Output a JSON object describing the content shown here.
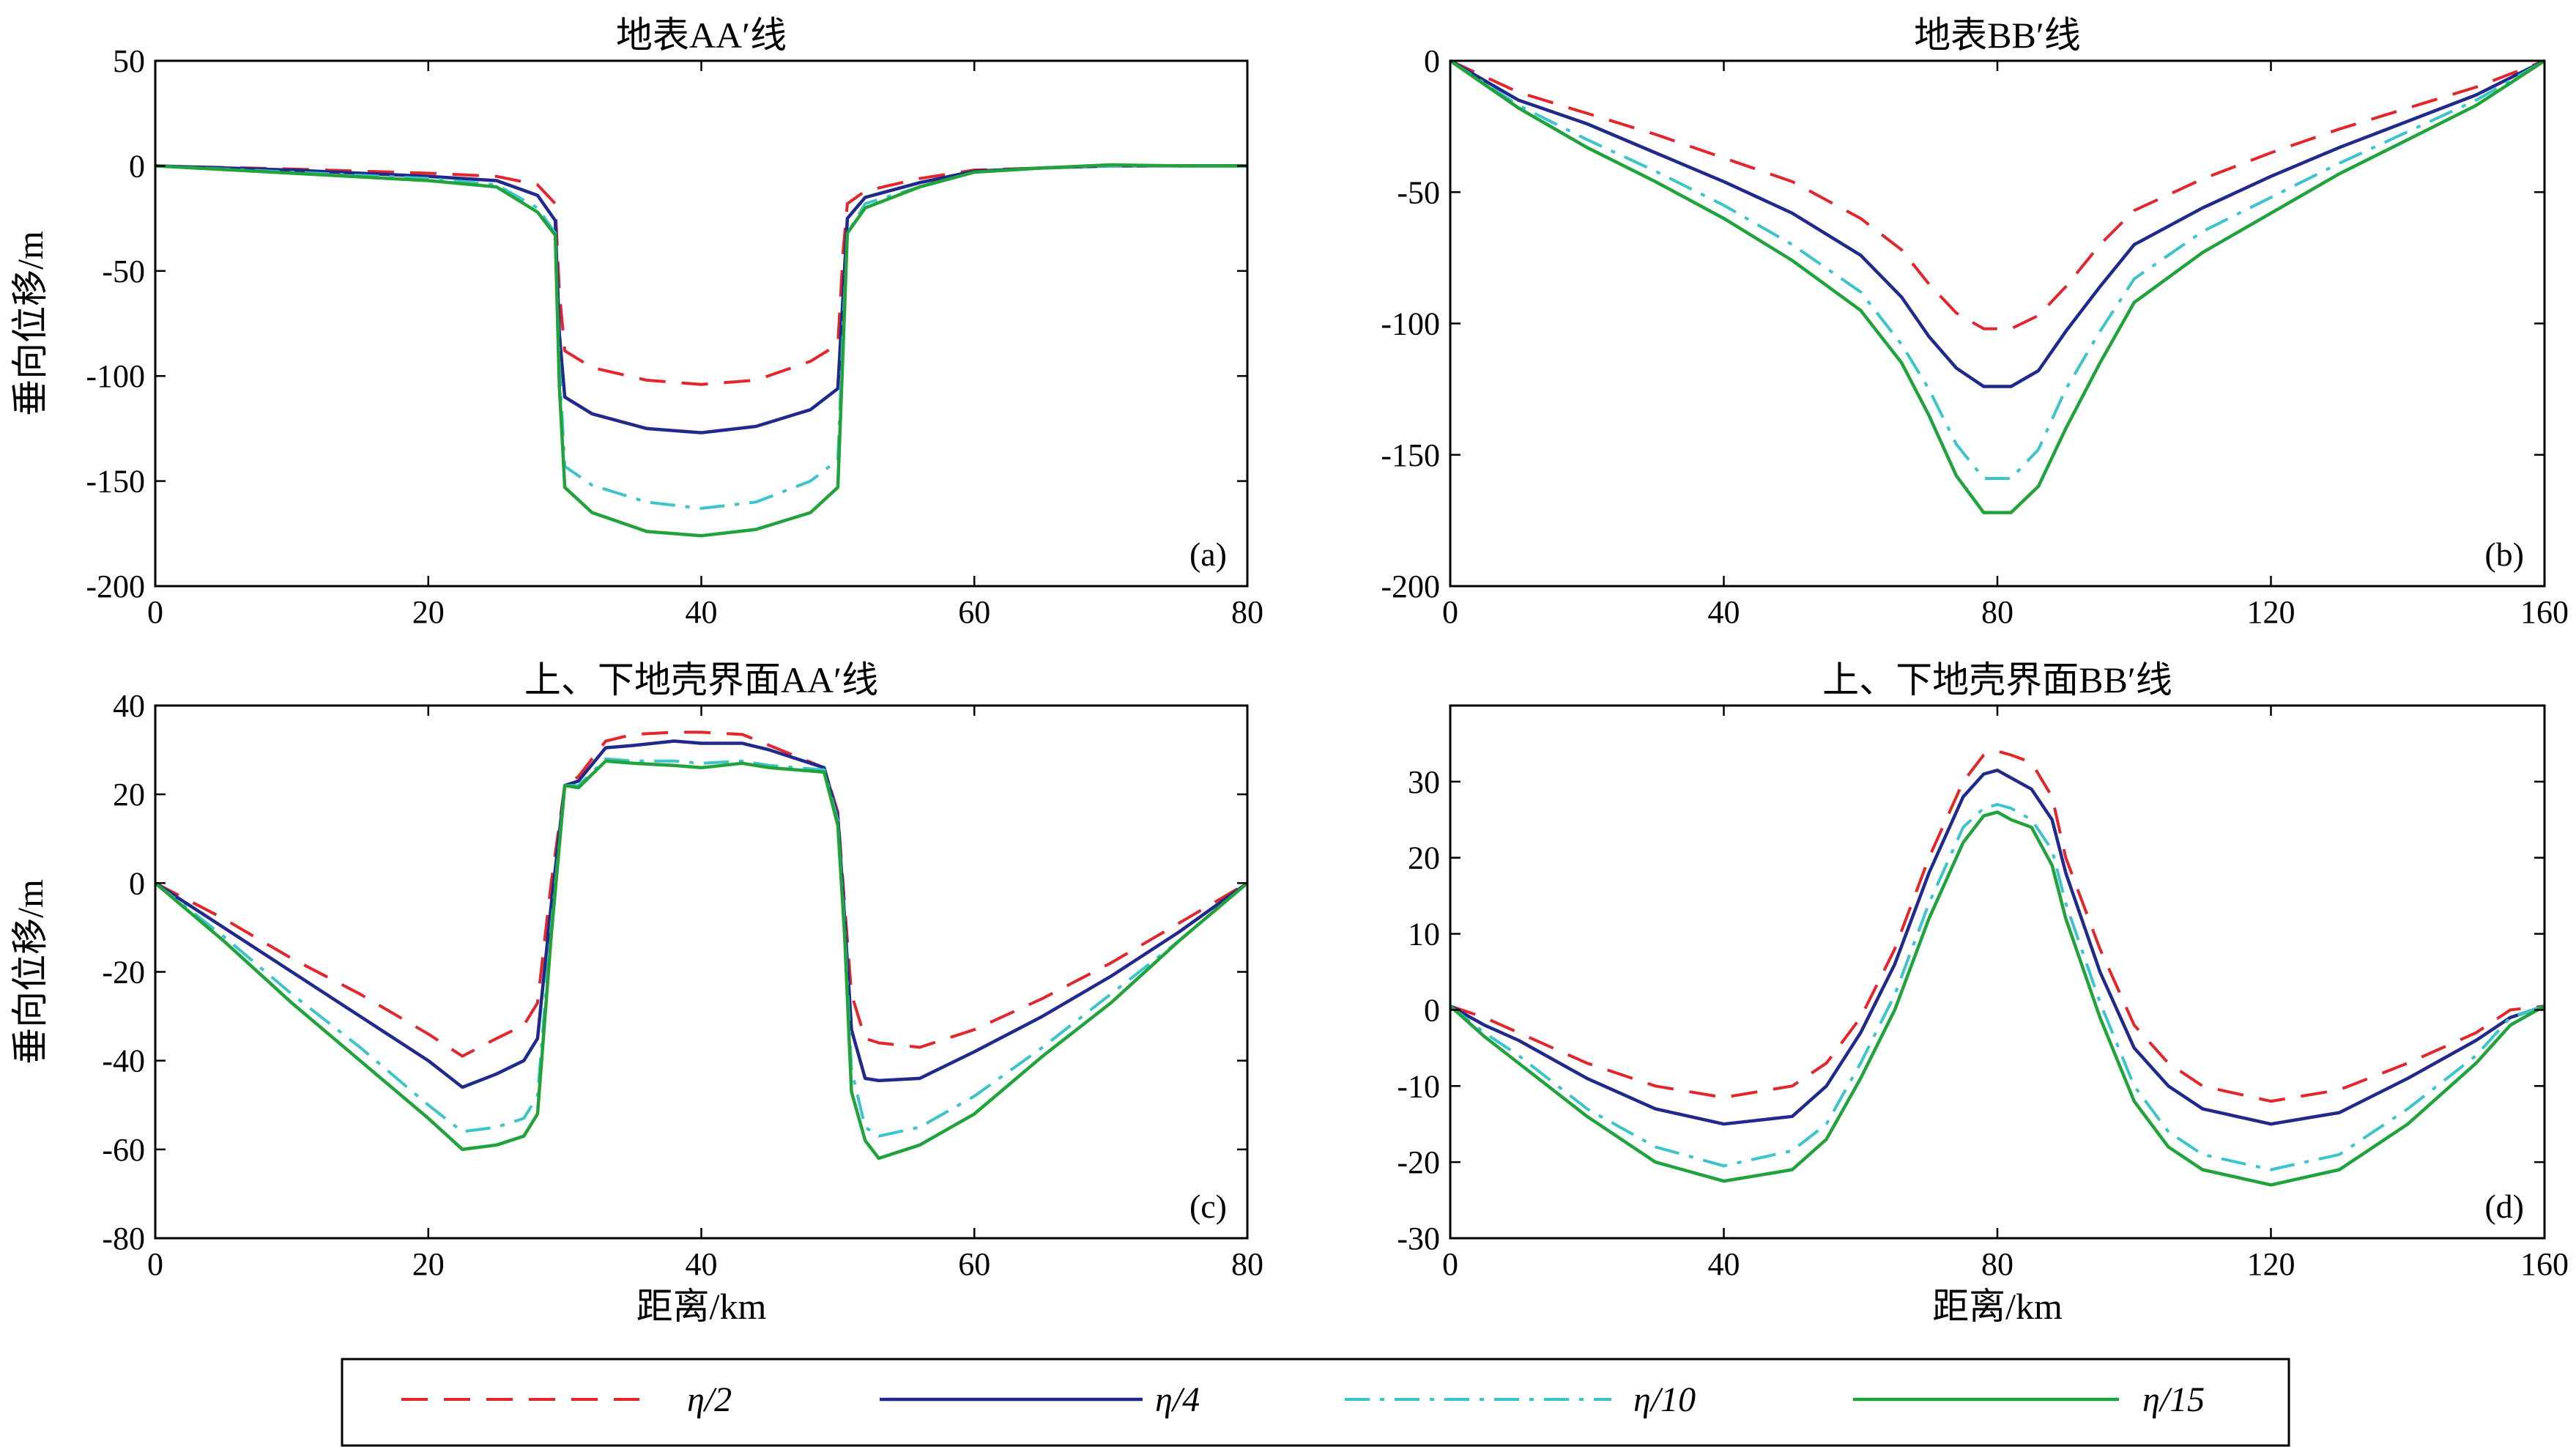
{
  "chart_data": [
    {
      "type": "line",
      "panel": "(a)",
      "title": "地表AA′线",
      "xlabel": "",
      "ylabel": "垂向位移/m",
      "xlim": [
        0,
        80
      ],
      "ylim": [
        -200,
        50
      ],
      "xticks": [
        0,
        20,
        40,
        60,
        80
      ],
      "yticks": [
        -200,
        -150,
        -100,
        -50,
        0,
        50
      ],
      "series": [
        {
          "name": "η/2",
          "x": [
            0,
            10,
            20,
            25,
            28,
            29.3,
            29.6,
            30,
            32,
            36,
            40,
            44,
            48,
            50,
            50.4,
            50.7,
            52,
            56,
            60,
            65,
            70,
            75,
            80
          ],
          "y": [
            0,
            -1.5,
            -3.5,
            -5,
            -9,
            -18,
            -60,
            -88,
            -96,
            -102,
            -104,
            -102,
            -93,
            -85,
            -40,
            -18,
            -12,
            -6,
            -2,
            -1,
            0,
            0,
            0
          ]
        },
        {
          "name": "η/4",
          "x": [
            0,
            10,
            20,
            25,
            28,
            29.3,
            29.6,
            30,
            32,
            36,
            40,
            44,
            48,
            50,
            50.4,
            50.7,
            52,
            56,
            60,
            65,
            70,
            75,
            80
          ],
          "y": [
            0,
            -2,
            -5,
            -7,
            -14,
            -26,
            -80,
            -110,
            -118,
            -125,
            -127,
            -124,
            -116,
            -106,
            -60,
            -25,
            -15,
            -8,
            -2.5,
            -1,
            0,
            0,
            0
          ]
        },
        {
          "name": "η/10",
          "x": [
            0,
            10,
            20,
            25,
            28,
            29.3,
            29.6,
            30,
            32,
            36,
            40,
            44,
            48,
            50,
            50.4,
            50.7,
            52,
            56,
            60,
            65,
            70,
            75,
            80
          ],
          "y": [
            0,
            -3,
            -6,
            -9,
            -20,
            -32,
            -95,
            -143,
            -152,
            -160,
            -163,
            -160,
            -150,
            -140,
            -75,
            -32,
            -18,
            -10,
            -3,
            -1,
            0,
            0,
            0
          ]
        },
        {
          "name": "η/15",
          "x": [
            0,
            10,
            20,
            25,
            28,
            29.3,
            29.6,
            30,
            32,
            36,
            40,
            44,
            48,
            50,
            50.4,
            50.7,
            52,
            56,
            60,
            65,
            70,
            75,
            80
          ],
          "y": [
            0,
            -3.5,
            -7,
            -10,
            -22,
            -33,
            -105,
            -153,
            -165,
            -174,
            -176,
            -173,
            -165,
            -153,
            -85,
            -32,
            -20,
            -10,
            -3,
            -1,
            0.5,
            0,
            0
          ]
        }
      ]
    },
    {
      "type": "line",
      "panel": "(b)",
      "title": "地表BB′线",
      "xlabel": "",
      "ylabel": "",
      "xlim": [
        0,
        160
      ],
      "ylim": [
        -200,
        0
      ],
      "xticks": [
        0,
        40,
        80,
        120,
        160
      ],
      "yticks": [
        -200,
        -150,
        -100,
        -50,
        0
      ],
      "series": [
        {
          "name": "η/2",
          "x": [
            0,
            10,
            20,
            30,
            40,
            50,
            60,
            66,
            70,
            74,
            78,
            82,
            86,
            90,
            95,
            100,
            110,
            120,
            130,
            140,
            150,
            160
          ],
          "y": [
            0,
            -12,
            -20,
            -28,
            -37,
            -46,
            -60,
            -72,
            -85,
            -96,
            -102,
            -102,
            -97,
            -86,
            -70,
            -57,
            -45,
            -35,
            -26,
            -18,
            -10,
            0
          ]
        },
        {
          "name": "η/4",
          "x": [
            0,
            10,
            20,
            30,
            40,
            50,
            60,
            66,
            70,
            74,
            78,
            82,
            86,
            90,
            95,
            100,
            110,
            120,
            130,
            140,
            150,
            160
          ],
          "y": [
            0,
            -15,
            -24,
            -35,
            -46,
            -58,
            -74,
            -90,
            -105,
            -117,
            -124,
            -124,
            -118,
            -103,
            -86,
            -70,
            -56,
            -44,
            -33,
            -23,
            -13,
            0
          ]
        },
        {
          "name": "η/10",
          "x": [
            0,
            10,
            20,
            30,
            40,
            50,
            60,
            66,
            70,
            74,
            78,
            82,
            86,
            90,
            95,
            100,
            110,
            120,
            130,
            140,
            150,
            160
          ],
          "y": [
            0,
            -17,
            -30,
            -42,
            -55,
            -70,
            -88,
            -108,
            -125,
            -146,
            -159,
            -159,
            -148,
            -125,
            -103,
            -83,
            -65,
            -52,
            -39,
            -27,
            -15,
            0
          ]
        },
        {
          "name": "η/15",
          "x": [
            0,
            10,
            20,
            30,
            40,
            50,
            60,
            66,
            70,
            74,
            78,
            82,
            86,
            90,
            95,
            100,
            110,
            120,
            130,
            140,
            150,
            160
          ],
          "y": [
            0,
            -18,
            -33,
            -46,
            -60,
            -76,
            -95,
            -115,
            -135,
            -158,
            -172,
            -172,
            -162,
            -140,
            -115,
            -92,
            -73,
            -58,
            -43,
            -30,
            -17,
            0
          ]
        }
      ]
    },
    {
      "type": "line",
      "panel": "(c)",
      "title": "上、下地壳界面AA′线",
      "xlabel": "距离/km",
      "ylabel": "垂向位移/m",
      "xlim": [
        0,
        80
      ],
      "ylim": [
        -80,
        40
      ],
      "xticks": [
        0,
        20,
        40,
        60,
        80
      ],
      "yticks": [
        -80,
        -60,
        -40,
        -20,
        0,
        20,
        40
      ],
      "series": [
        {
          "name": "η/2",
          "x": [
            0,
            5,
            10,
            15,
            20,
            22.5,
            25,
            27,
            28,
            29,
            30,
            31,
            33,
            35,
            38,
            40,
            43,
            45,
            49,
            50,
            50.5,
            51,
            52,
            53,
            56,
            60,
            65,
            70,
            75,
            80
          ],
          "y": [
            0,
            -8,
            -17,
            -25,
            -34,
            -39,
            -35,
            -32,
            -27,
            0,
            22,
            24,
            32,
            33.5,
            34,
            34,
            33.5,
            31,
            26,
            16,
            -5,
            -25,
            -35,
            -36,
            -37,
            -33,
            -26,
            -18,
            -9,
            0
          ]
        },
        {
          "name": "η/4",
          "x": [
            0,
            5,
            10,
            15,
            20,
            22.5,
            25,
            27,
            28,
            29,
            30,
            31,
            33,
            35,
            38,
            40,
            43,
            45,
            49,
            50,
            50.5,
            51,
            52,
            53,
            56,
            60,
            65,
            70,
            75,
            80
          ],
          "y": [
            0,
            -10,
            -20,
            -30,
            -40,
            -46,
            -43,
            -40,
            -35,
            -5,
            22,
            23,
            30.5,
            31,
            32,
            31.5,
            31.5,
            30,
            26,
            15,
            -8,
            -33,
            -44,
            -44.5,
            -44,
            -38,
            -30,
            -21,
            -11,
            0
          ]
        },
        {
          "name": "η/10",
          "x": [
            0,
            5,
            10,
            15,
            20,
            22.5,
            25,
            27,
            28,
            29,
            30,
            31,
            33,
            35,
            38,
            40,
            43,
            45,
            49,
            50,
            50.5,
            51,
            52,
            53,
            56,
            60,
            65,
            70,
            75,
            80
          ],
          "y": [
            0,
            -12,
            -25,
            -37,
            -50,
            -56,
            -55,
            -53,
            -48,
            -10,
            22,
            22,
            28,
            27.5,
            27.5,
            27,
            27.5,
            26.5,
            25.5,
            14,
            -10,
            -42,
            -55,
            -57,
            -55,
            -48,
            -37,
            -25,
            -13,
            0
          ]
        },
        {
          "name": "η/15",
          "x": [
            0,
            5,
            10,
            15,
            20,
            22.5,
            25,
            27,
            28,
            29,
            30,
            31,
            33,
            35,
            38,
            40,
            43,
            45,
            49,
            50,
            50.5,
            51,
            52,
            53,
            56,
            60,
            65,
            70,
            75,
            80
          ],
          "y": [
            0,
            -13,
            -27,
            -40,
            -53,
            -60,
            -59,
            -57,
            -52,
            -12,
            22,
            21.5,
            27.5,
            27,
            26.5,
            26,
            27,
            26,
            25,
            13,
            -12,
            -47,
            -58,
            -62,
            -59,
            -52,
            -39,
            -27,
            -13,
            0
          ]
        }
      ]
    },
    {
      "type": "line",
      "panel": "(d)",
      "title": "上、下地壳界面BB′线",
      "xlabel": "距离/km",
      "ylabel": "",
      "xlim": [
        0,
        160
      ],
      "ylim": [
        -30,
        40
      ],
      "xticks": [
        0,
        40,
        80,
        120,
        160
      ],
      "yticks": [
        -30,
        -20,
        -10,
        0,
        10,
        20,
        30
      ],
      "series": [
        {
          "name": "η/2",
          "x": [
            0,
            5,
            10,
            20,
            30,
            40,
            50,
            55,
            60,
            65,
            70,
            75,
            78,
            80,
            82,
            85,
            88,
            90,
            95,
            100,
            105,
            110,
            120,
            130,
            140,
            150,
            155,
            160
          ],
          "y": [
            0.5,
            -1,
            -3,
            -7,
            -10,
            -11.5,
            -10,
            -7,
            -1,
            8,
            20,
            30,
            33.5,
            34,
            33.5,
            32.5,
            28,
            20,
            8,
            -2,
            -7,
            -10,
            -12,
            -10.5,
            -7,
            -3,
            0,
            0.5
          ]
        },
        {
          "name": "η/4",
          "x": [
            0,
            5,
            10,
            20,
            30,
            40,
            50,
            55,
            60,
            65,
            70,
            75,
            78,
            80,
            82,
            85,
            88,
            90,
            95,
            100,
            105,
            110,
            120,
            130,
            140,
            150,
            155,
            160
          ],
          "y": [
            0.5,
            -2,
            -4,
            -9,
            -13,
            -15,
            -14,
            -10,
            -3,
            6,
            18,
            28,
            31,
            31.5,
            30.5,
            29,
            25,
            18,
            5,
            -5,
            -10,
            -13,
            -15,
            -13.5,
            -9,
            -4,
            -1,
            0.5
          ]
        },
        {
          "name": "η/10",
          "x": [
            0,
            5,
            10,
            20,
            30,
            40,
            50,
            55,
            60,
            65,
            70,
            75,
            78,
            80,
            82,
            85,
            88,
            90,
            95,
            100,
            105,
            110,
            120,
            130,
            140,
            150,
            155,
            160
          ],
          "y": [
            0.5,
            -3,
            -6,
            -13,
            -18,
            -20.5,
            -18.5,
            -15,
            -7,
            2,
            14,
            24,
            26.5,
            27,
            26.5,
            25,
            21,
            14,
            1,
            -10,
            -16,
            -19,
            -21,
            -19,
            -13,
            -6,
            -1,
            0.5
          ]
        },
        {
          "name": "η/15",
          "x": [
            0,
            5,
            10,
            20,
            30,
            40,
            50,
            55,
            60,
            65,
            70,
            75,
            78,
            80,
            82,
            85,
            88,
            90,
            95,
            100,
            105,
            110,
            120,
            130,
            140,
            150,
            155,
            160
          ],
          "y": [
            0.5,
            -3.5,
            -7,
            -14,
            -20,
            -22.5,
            -21,
            -17,
            -9,
            0,
            12,
            22,
            25.5,
            26,
            25,
            24,
            19,
            12,
            -1,
            -12,
            -18,
            -21,
            -23,
            -21,
            -15,
            -7,
            -2,
            0.5
          ]
        }
      ]
    }
  ],
  "legend": {
    "placement": "bottom",
    "entries": [
      {
        "label": "η/2",
        "color": "#e3262b",
        "dash": "dashed"
      },
      {
        "label": "η/4",
        "color": "#1f2a8c",
        "dash": "solid"
      },
      {
        "label": "η/10",
        "color": "#3bc4c9",
        "dash": "dash-dot"
      },
      {
        "label": "η/15",
        "color": "#21a33b",
        "dash": "solid"
      }
    ]
  },
  "series_colors": {
    "η/2": "#e3262b",
    "η/4": "#1f2a8c",
    "η/10": "#3bc4c9",
    "η/15": "#21a33b"
  }
}
